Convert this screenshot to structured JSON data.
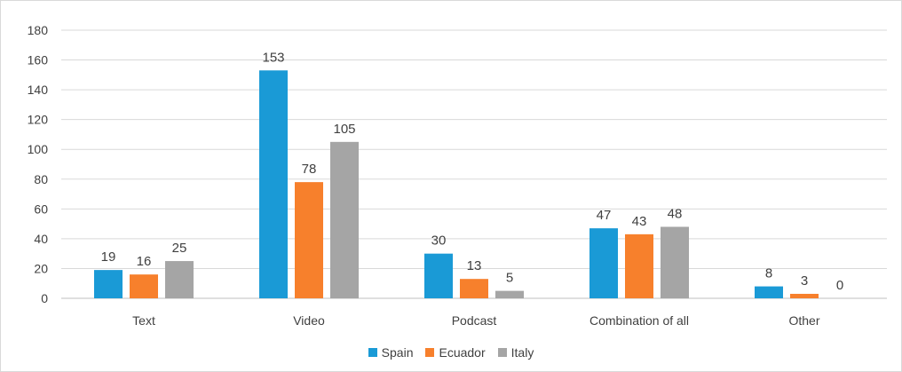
{
  "chart_data": {
    "type": "bar",
    "title": "",
    "xlabel": "",
    "ylabel": "",
    "ylim": [
      0,
      180
    ],
    "yticks": [
      0,
      20,
      40,
      60,
      80,
      100,
      120,
      140,
      160,
      180
    ],
    "grid": true,
    "legend_position": "bottom",
    "categories": [
      "Text",
      "Video",
      "Podcast",
      "Combination of all",
      "Other"
    ],
    "series": [
      {
        "name": "Spain",
        "color": "#1a9ad6",
        "values": [
          19,
          153,
          30,
          47,
          8
        ]
      },
      {
        "name": "Ecuador",
        "color": "#f7802c",
        "values": [
          16,
          78,
          13,
          43,
          3
        ]
      },
      {
        "name": "Italy",
        "color": "#a5a5a5",
        "values": [
          25,
          105,
          5,
          48,
          0
        ]
      }
    ]
  }
}
